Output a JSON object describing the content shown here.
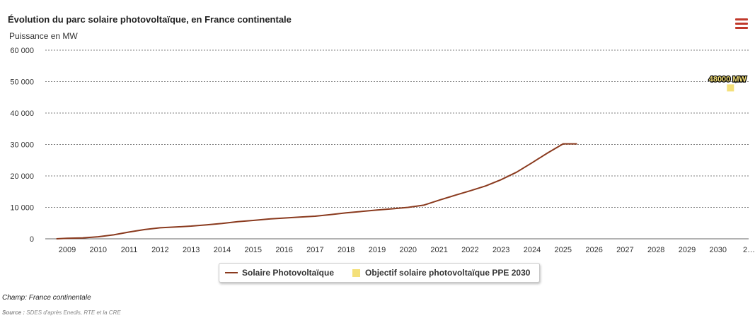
{
  "chart_data": {
    "type": "line",
    "title": "Évolution du parc solaire photovoltaïque, en France continentale",
    "ylabel": "Puissance en MW",
    "xlabel": "",
    "ylim": [
      0,
      60000
    ],
    "xlim": [
      2008.6,
      2031.5
    ],
    "y_ticks": [
      0,
      10000,
      20000,
      30000,
      40000,
      50000,
      60000
    ],
    "y_tick_labels": [
      "0",
      "10 000",
      "20 000",
      "30 000",
      "40 000",
      "50 000",
      "60 000"
    ],
    "x_tick_labels": [
      "2009",
      "2010",
      "2011",
      "2012",
      "2013",
      "2014",
      "2015",
      "2016",
      "2017",
      "2018",
      "2019",
      "2020",
      "2021",
      "2022",
      "2023",
      "2024",
      "2025",
      "2026",
      "2027",
      "2028",
      "2029",
      "2030",
      "2…"
    ],
    "series": [
      {
        "name": "Solaire Photovoltaïque",
        "color": "#8a3a1e",
        "x": [
          2008.65,
          2009.0,
          2009.5,
          2010.0,
          2010.5,
          2011.0,
          2011.5,
          2012.0,
          2012.5,
          2013.0,
          2013.5,
          2014.0,
          2014.5,
          2015.0,
          2015.5,
          2016.0,
          2016.5,
          2017.0,
          2017.5,
          2018.0,
          2018.5,
          2019.0,
          2019.5,
          2020.0,
          2020.5,
          2021.0,
          2021.5,
          2022.0,
          2022.5,
          2023.0,
          2023.5,
          2024.0,
          2024.5,
          2025.0,
          2025.45
        ],
        "values": [
          0,
          180,
          300,
          650,
          1250,
          2150,
          2950,
          3500,
          3750,
          4050,
          4450,
          4900,
          5450,
          5850,
          6300,
          6600,
          6900,
          7200,
          7700,
          8250,
          8700,
          9150,
          9550,
          10000,
          10700,
          12300,
          13800,
          15250,
          16800,
          18800,
          21200,
          24200,
          27300,
          30200,
          30200
        ]
      },
      {
        "name": "Objectif solaire photovoltaïque PPE 2030",
        "color": "#f4e07a",
        "x": [
          2030.4
        ],
        "values": [
          48000
        ],
        "data_label": "48000 MW"
      }
    ],
    "legend": "bottom-center",
    "grid": "horizontal-dashed"
  },
  "footnote": "Champ: France continentale",
  "source_label": "Source :",
  "source_text": " SDES d'après Enedis, RTE et la CRE",
  "menu_icon": "hamburger-menu-icon"
}
